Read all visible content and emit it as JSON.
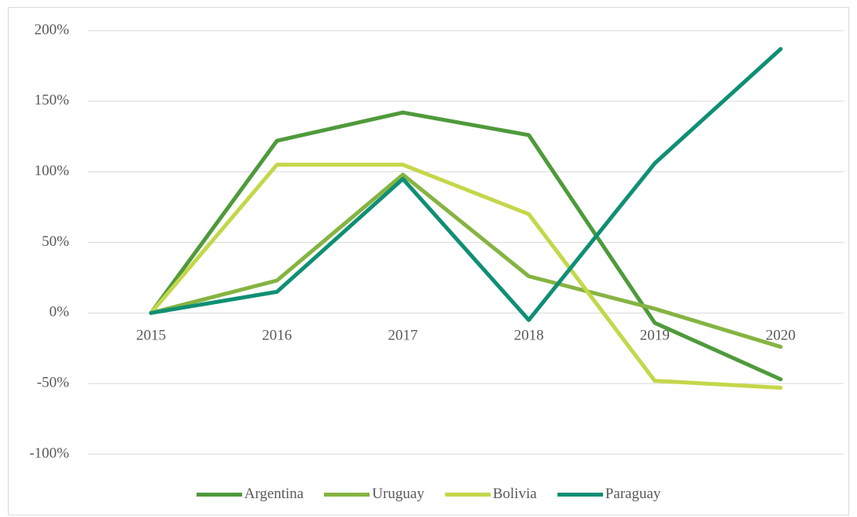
{
  "chart_data": {
    "type": "line",
    "categories": [
      "2015",
      "2016",
      "2017",
      "2018",
      "2019",
      "2020"
    ],
    "series": [
      {
        "name": "Argentina",
        "color": "#4f9a3b",
        "values": [
          0,
          122,
          142,
          126,
          -7,
          -47
        ]
      },
      {
        "name": "Uruguay",
        "color": "#85b441",
        "values": [
          0,
          23,
          98,
          26,
          3,
          -24
        ]
      },
      {
        "name": "Bolivia",
        "color": "#c4d74a",
        "values": [
          0,
          105,
          105,
          70,
          -48,
          -53
        ]
      },
      {
        "name": "Paraguay",
        "color": "#0f8f74",
        "values": [
          0,
          15,
          95,
          -5,
          106,
          187
        ]
      }
    ],
    "ylim": [
      -100,
      200
    ],
    "yticks": [
      {
        "value": -100,
        "label": "-100%"
      },
      {
        "value": -50,
        "label": "-50%"
      },
      {
        "value": 0,
        "label": "0%"
      },
      {
        "value": 50,
        "label": "50%"
      },
      {
        "value": 100,
        "label": "100%"
      },
      {
        "value": 150,
        "label": "150%"
      },
      {
        "value": 200,
        "label": "200%"
      }
    ],
    "grid": true,
    "legend": "bottom"
  }
}
